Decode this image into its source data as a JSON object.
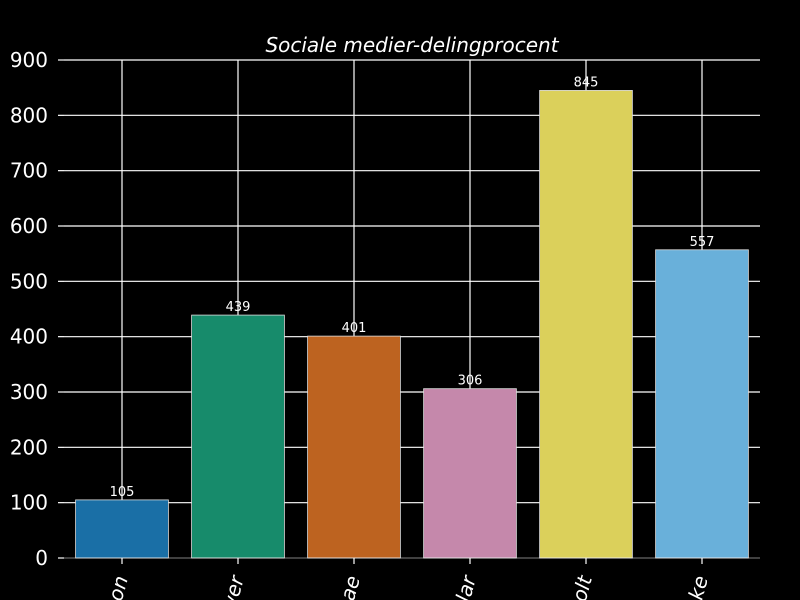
{
  "chart_data": {
    "type": "bar",
    "title": "Sociale medier-delingprocent",
    "xlabel": "",
    "ylabel": "",
    "categories": [
      "on",
      "wer",
      "ae",
      "lar",
      "olt",
      "ke"
    ],
    "values": [
      105,
      439,
      401,
      306,
      845,
      557
    ],
    "colors": [
      "#1a6fa6",
      "#178b6b",
      "#bd6320",
      "#c588ab",
      "#dbd05b",
      "#69b0da"
    ],
    "ylim": [
      0,
      900
    ],
    "yticks": [
      0,
      100,
      200,
      300,
      400,
      500,
      600,
      700,
      800,
      900
    ],
    "grid": true,
    "background": "#000000"
  }
}
